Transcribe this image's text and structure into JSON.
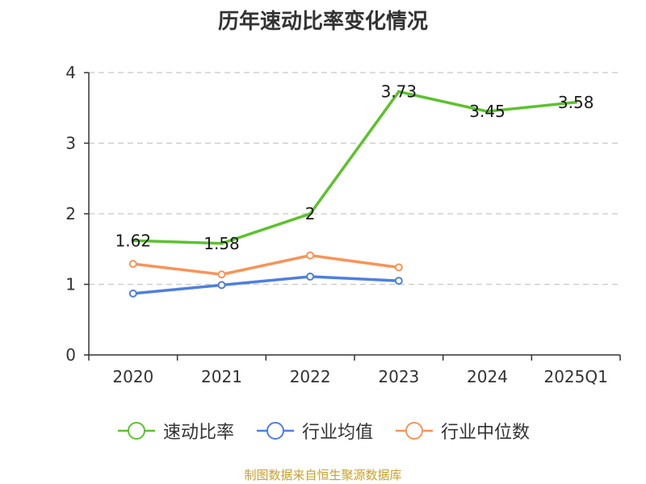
{
  "chart_data": {
    "type": "line",
    "title": "历年速动比率变化情况",
    "categories": [
      "2020",
      "2021",
      "2022",
      "2023",
      "2024",
      "2025Q1"
    ],
    "ylim": [
      0,
      4
    ],
    "yticks": [
      "0",
      "1",
      "2",
      "3",
      "4"
    ],
    "grid": true,
    "legend_position": "bottom",
    "series": [
      {
        "name": "速动比率",
        "color": "#5cc22e",
        "values": [
          1.62,
          1.58,
          2,
          3.73,
          3.45,
          3.58
        ],
        "labels": [
          "1.62",
          "1.58",
          "2",
          "3.73",
          "3.45",
          "3.58"
        ]
      },
      {
        "name": "行业均值",
        "color": "#4f7fdc",
        "values": [
          0.87,
          0.99,
          1.11,
          1.05,
          null,
          null
        ]
      },
      {
        "name": "行业中位数",
        "color": "#f79458",
        "values": [
          1.29,
          1.14,
          1.41,
          1.24,
          null,
          null
        ]
      }
    ]
  },
  "source": "制图数据来自恒生聚源数据库"
}
